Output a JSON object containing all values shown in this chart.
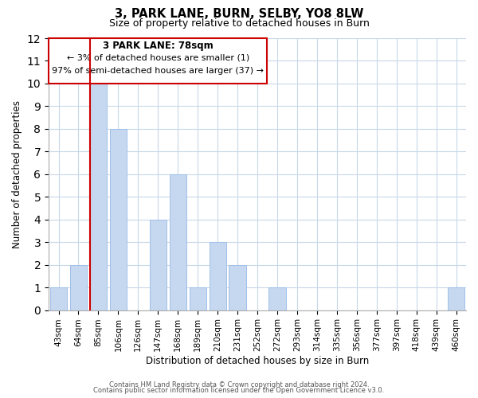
{
  "title": "3, PARK LANE, BURN, SELBY, YO8 8LW",
  "subtitle": "Size of property relative to detached houses in Burn",
  "xlabel": "Distribution of detached houses by size in Burn",
  "ylabel": "Number of detached properties",
  "bar_labels": [
    "43sqm",
    "64sqm",
    "85sqm",
    "106sqm",
    "126sqm",
    "147sqm",
    "168sqm",
    "189sqm",
    "210sqm",
    "231sqm",
    "252sqm",
    "272sqm",
    "293sqm",
    "314sqm",
    "335sqm",
    "356sqm",
    "377sqm",
    "397sqm",
    "418sqm",
    "439sqm",
    "460sqm"
  ],
  "bar_values": [
    1,
    2,
    10,
    8,
    0,
    4,
    6,
    1,
    3,
    2,
    0,
    1,
    0,
    0,
    0,
    0,
    0,
    0,
    0,
    0,
    1
  ],
  "bar_color": "#c5d8f0",
  "bar_edge_color": "#a0c0e8",
  "highlight_bar_index": 2,
  "highlight_box_color": "#cc0000",
  "ylim": [
    0,
    12
  ],
  "yticks": [
    0,
    1,
    2,
    3,
    4,
    5,
    6,
    7,
    8,
    9,
    10,
    11,
    12
  ],
  "annotation_title": "3 PARK LANE: 78sqm",
  "annotation_line1": "← 3% of detached houses are smaller (1)",
  "annotation_line2": "97% of semi-detached houses are larger (37) →",
  "footer1": "Contains HM Land Registry data © Crown copyright and database right 2024.",
  "footer2": "Contains public sector information licensed under the Open Government Licence v3.0.",
  "bg_color": "#ffffff",
  "grid_color": "#c8d8e8"
}
